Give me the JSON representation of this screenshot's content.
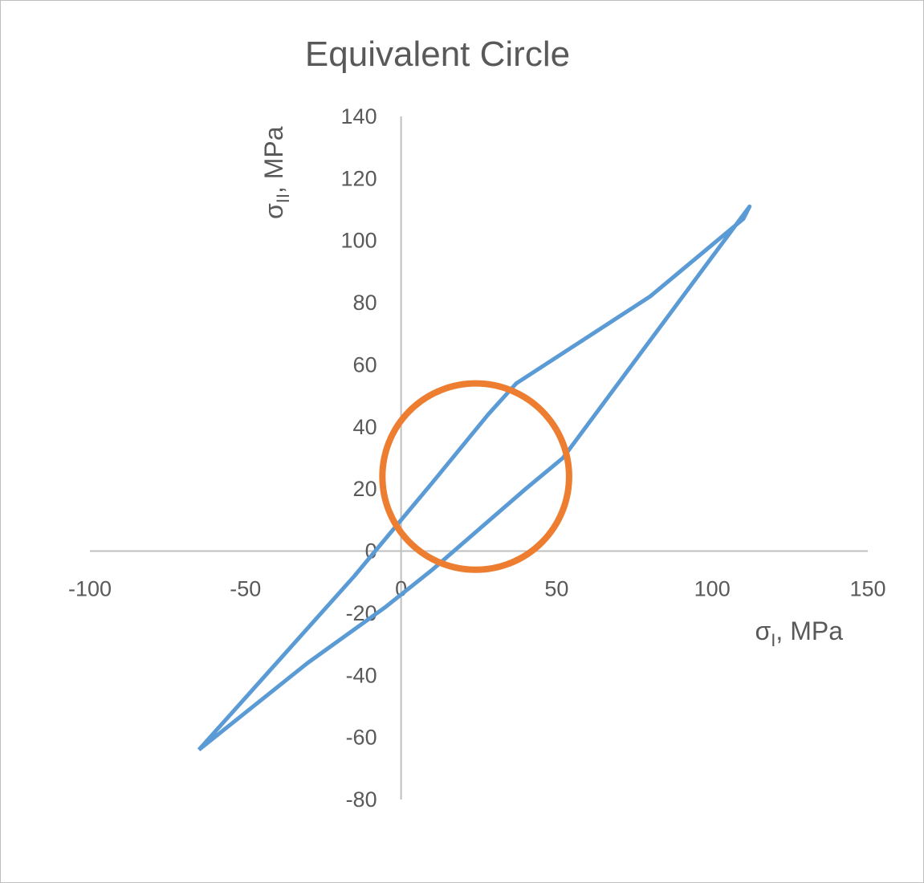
{
  "chart_data": {
    "type": "scatter",
    "title": "Equivalent Circle",
    "xlabel": {
      "main": "σ",
      "sub": "I",
      "suffix": ", MPa"
    },
    "ylabel": {
      "main": "σ",
      "sub": "II",
      "suffix": ", MPa"
    },
    "xlim": [
      -100,
      150
    ],
    "ylim": [
      -80,
      140
    ],
    "x_ticks": [
      -100,
      -50,
      0,
      50,
      100,
      150
    ],
    "y_ticks": [
      -80,
      -60,
      -40,
      -20,
      0,
      20,
      40,
      60,
      80,
      100,
      120,
      140
    ],
    "grid": false,
    "legend": "none",
    "series": [
      {
        "color": "#5b9bd5",
        "x": [
          -65,
          -30,
          -5,
          10,
          25,
          40,
          52,
          112,
          110,
          80,
          37,
          28,
          10,
          0,
          -15,
          -40,
          -65
        ],
        "y": [
          -64,
          -36,
          -18,
          -6,
          7,
          20,
          30,
          111,
          107,
          82,
          54,
          44,
          22,
          10,
          -8,
          -36,
          -64
        ]
      },
      {
        "color": "#ed7d31",
        "shape": "circle",
        "center": [
          24,
          24
        ],
        "radius": 30
      }
    ]
  }
}
